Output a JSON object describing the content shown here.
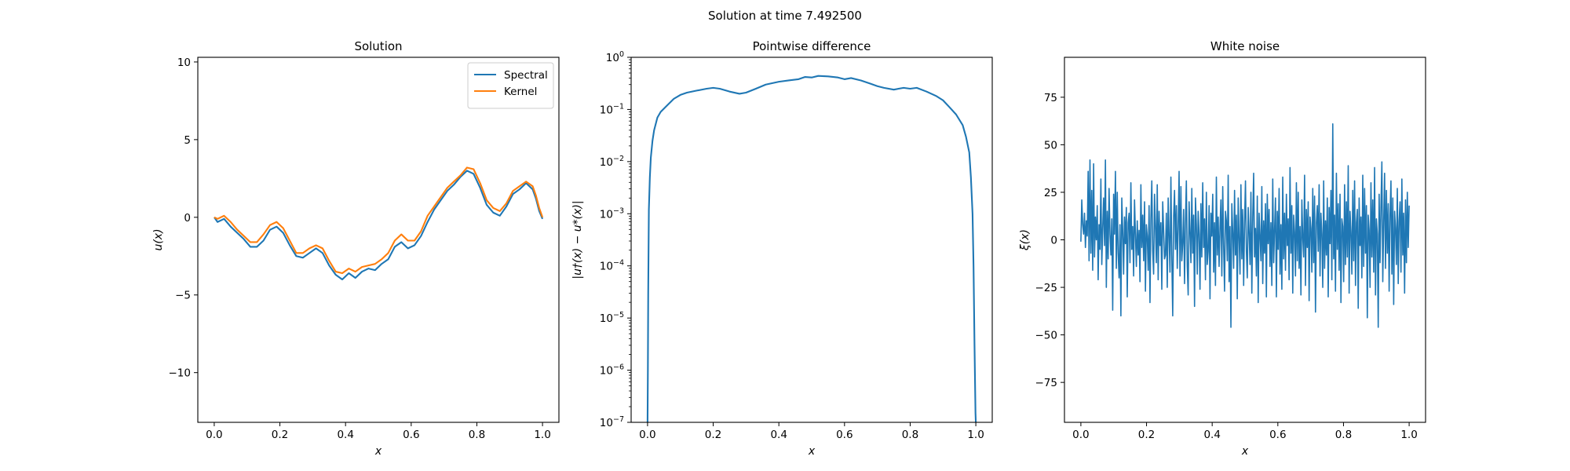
{
  "figure": {
    "title": "Solution at time 7.492500"
  },
  "colors": {
    "blue": "#1f77b4",
    "orange": "#ff7f0e",
    "axis": "#000000",
    "legend_edge": "#cccccc"
  },
  "chart_data": [
    {
      "type": "line",
      "title": "Solution",
      "xlabel": "x",
      "ylabel": "u(x)",
      "xlim": [
        -0.05,
        1.05
      ],
      "ylim": [
        -13.2,
        10.3
      ],
      "yscale": "linear",
      "legend": "top-right",
      "grid": false,
      "xticks": [
        {
          "v": 0,
          "label": "0.0"
        },
        {
          "v": 0.2,
          "label": "0.2"
        },
        {
          "v": 0.4,
          "label": "0.4"
        },
        {
          "v": 0.6,
          "label": "0.6"
        },
        {
          "v": 0.8,
          "label": "0.8"
        },
        {
          "v": 1,
          "label": "1.0"
        }
      ],
      "yticks": [
        {
          "v": 10,
          "label": "10"
        },
        {
          "v": 5,
          "label": "5"
        },
        {
          "v": 0,
          "label": "0"
        },
        {
          "v": -5,
          "label": "−5"
        },
        {
          "v": -10,
          "label": "−10"
        }
      ],
      "series": [
        {
          "name": "Spectral",
          "color": "#1f77b4",
          "x": [
            0,
            0.01,
            0.02,
            0.03,
            0.05,
            0.07,
            0.09,
            0.11,
            0.13,
            0.15,
            0.17,
            0.19,
            0.21,
            0.23,
            0.25,
            0.27,
            0.29,
            0.31,
            0.33,
            0.35,
            0.37,
            0.39,
            0.41,
            0.43,
            0.45,
            0.47,
            0.49,
            0.51,
            0.53,
            0.55,
            0.57,
            0.59,
            0.61,
            0.63,
            0.65,
            0.67,
            0.69,
            0.71,
            0.73,
            0.75,
            0.77,
            0.79,
            0.81,
            0.83,
            0.85,
            0.87,
            0.89,
            0.91,
            0.93,
            0.95,
            0.97,
            0.98,
            0.99,
            1.0
          ],
          "y": [
            0.0,
            -0.3,
            -0.2,
            -0.1,
            -0.6,
            -1.0,
            -1.4,
            -1.9,
            -1.9,
            -1.5,
            -0.8,
            -0.6,
            -1.0,
            -1.8,
            -2.5,
            -2.6,
            -2.3,
            -2.0,
            -2.3,
            -3.1,
            -3.7,
            -4.0,
            -3.6,
            -3.9,
            -3.5,
            -3.3,
            -3.4,
            -3.0,
            -2.7,
            -1.9,
            -1.6,
            -2.0,
            -1.8,
            -1.2,
            -0.3,
            0.5,
            1.1,
            1.7,
            2.1,
            2.6,
            3.0,
            2.8,
            1.9,
            0.8,
            0.3,
            0.1,
            0.7,
            1.5,
            1.8,
            2.2,
            1.8,
            1.2,
            0.4,
            -0.1
          ]
        },
        {
          "name": "Kernel",
          "color": "#ff7f0e",
          "x": [
            0,
            0.01,
            0.02,
            0.03,
            0.05,
            0.07,
            0.09,
            0.11,
            0.13,
            0.15,
            0.17,
            0.19,
            0.21,
            0.23,
            0.25,
            0.27,
            0.29,
            0.31,
            0.33,
            0.35,
            0.37,
            0.39,
            0.41,
            0.43,
            0.45,
            0.47,
            0.49,
            0.51,
            0.53,
            0.55,
            0.57,
            0.59,
            0.61,
            0.63,
            0.65,
            0.67,
            0.69,
            0.71,
            0.73,
            0.75,
            0.77,
            0.79,
            0.81,
            0.83,
            0.85,
            0.87,
            0.89,
            0.91,
            0.93,
            0.95,
            0.97,
            0.98,
            0.99,
            1.0
          ],
          "y": [
            0.0,
            -0.1,
            0.0,
            0.1,
            -0.3,
            -0.8,
            -1.2,
            -1.6,
            -1.6,
            -1.1,
            -0.5,
            -0.3,
            -0.7,
            -1.5,
            -2.3,
            -2.3,
            -2.0,
            -1.8,
            -2.0,
            -2.8,
            -3.5,
            -3.6,
            -3.3,
            -3.5,
            -3.2,
            -3.1,
            -3.0,
            -2.7,
            -2.3,
            -1.5,
            -1.1,
            -1.5,
            -1.5,
            -0.9,
            0.1,
            0.7,
            1.3,
            1.9,
            2.3,
            2.7,
            3.2,
            3.1,
            2.2,
            1.1,
            0.6,
            0.4,
            0.9,
            1.7,
            2.0,
            2.3,
            2.0,
            1.4,
            0.6,
            0.0
          ]
        }
      ]
    },
    {
      "type": "line",
      "title": "Pointwise difference",
      "xlabel": "x",
      "ylabel": "|u†(x) − u*(x)|",
      "xlim": [
        -0.05,
        1.05
      ],
      "ylim": [
        1e-07,
        1
      ],
      "yscale": "log",
      "grid": false,
      "xticks": [
        {
          "v": 0,
          "label": "0.0"
        },
        {
          "v": 0.2,
          "label": "0.2"
        },
        {
          "v": 0.4,
          "label": "0.4"
        },
        {
          "v": 0.6,
          "label": "0.6"
        },
        {
          "v": 0.8,
          "label": "0.8"
        },
        {
          "v": 1,
          "label": "1.0"
        }
      ],
      "yticks": [
        {
          "v": 1e-07,
          "base": "10",
          "exp": "−7"
        },
        {
          "v": 1e-06,
          "base": "10",
          "exp": "−6"
        },
        {
          "v": 1e-05,
          "base": "10",
          "exp": "−5"
        },
        {
          "v": 0.0001,
          "base": "10",
          "exp": "−4"
        },
        {
          "v": 0.001,
          "base": "10",
          "exp": "−3"
        },
        {
          "v": 0.01,
          "base": "10",
          "exp": "−2"
        },
        {
          "v": 0.1,
          "base": "10",
          "exp": "−1"
        },
        {
          "v": 1,
          "base": "10",
          "exp": "0"
        }
      ],
      "series": [
        {
          "color": "#1f77b4",
          "x": [
            0.0,
            0.001,
            0.002,
            0.004,
            0.007,
            0.01,
            0.015,
            0.02,
            0.03,
            0.04,
            0.06,
            0.08,
            0.1,
            0.12,
            0.15,
            0.18,
            0.2,
            0.22,
            0.25,
            0.28,
            0.3,
            0.33,
            0.36,
            0.4,
            0.43,
            0.46,
            0.48,
            0.5,
            0.52,
            0.55,
            0.58,
            0.6,
            0.62,
            0.65,
            0.68,
            0.7,
            0.72,
            0.75,
            0.78,
            0.8,
            0.82,
            0.85,
            0.88,
            0.9,
            0.92,
            0.94,
            0.96,
            0.97,
            0.98,
            0.985,
            0.99,
            0.993,
            0.996,
            0.998,
            0.999,
            1.0
          ],
          "y": [
            1e-07,
            1e-06,
            3e-05,
            0.0012,
            0.005,
            0.012,
            0.025,
            0.04,
            0.07,
            0.09,
            0.12,
            0.16,
            0.19,
            0.21,
            0.23,
            0.25,
            0.26,
            0.25,
            0.22,
            0.2,
            0.21,
            0.25,
            0.3,
            0.34,
            0.36,
            0.38,
            0.42,
            0.41,
            0.44,
            0.43,
            0.41,
            0.38,
            0.4,
            0.36,
            0.31,
            0.28,
            0.26,
            0.24,
            0.26,
            0.25,
            0.26,
            0.22,
            0.18,
            0.15,
            0.11,
            0.08,
            0.05,
            0.03,
            0.015,
            0.005,
            0.001,
            0.0001,
            3e-06,
            4e-07,
            1.5e-07,
            1e-07
          ]
        }
      ]
    },
    {
      "type": "line",
      "title": "White noise",
      "xlabel": "x",
      "ylabel": "ξ(x)",
      "xlim": [
        -0.05,
        1.05
      ],
      "ylim": [
        -96,
        96
      ],
      "yscale": "linear",
      "grid": false,
      "xticks": [
        {
          "v": 0,
          "label": "0.0"
        },
        {
          "v": 0.2,
          "label": "0.2"
        },
        {
          "v": 0.4,
          "label": "0.4"
        },
        {
          "v": 0.6,
          "label": "0.6"
        },
        {
          "v": 0.8,
          "label": "0.8"
        },
        {
          "v": 1,
          "label": "1.0"
        }
      ],
      "yticks": [
        {
          "v": 75,
          "label": "75"
        },
        {
          "v": 50,
          "label": "50"
        },
        {
          "v": 25,
          "label": "25"
        },
        {
          "v": 0,
          "label": "0"
        },
        {
          "v": -25,
          "label": "−25"
        },
        {
          "v": -50,
          "label": "−50"
        },
        {
          "v": -75,
          "label": "−75"
        }
      ],
      "series": [
        {
          "color": "#1f77b4",
          "x_start": 0,
          "x_end": 1,
          "y": [
            -1,
            21,
            8,
            3,
            14,
            -4,
            10,
            2,
            36,
            -11,
            42,
            -7,
            26,
            -16,
            40,
            -9,
            12,
            0,
            18,
            -21,
            8,
            -5,
            32,
            -13,
            6,
            22,
            -3,
            42,
            -25,
            15,
            -10,
            27,
            3,
            -8,
            11,
            -37,
            24,
            3,
            36,
            -15,
            25,
            -7,
            -20,
            8,
            -40,
            22,
            5,
            -18,
            12,
            -2,
            17,
            -30,
            9,
            14,
            -12,
            30,
            -5,
            7,
            -19,
            21,
            3,
            -14,
            10,
            -8,
            5,
            -22,
            29,
            -4,
            13,
            -11,
            20,
            -27,
            8,
            2,
            -16,
            18,
            -33,
            11,
            31,
            -6,
            -18,
            24,
            7,
            -12,
            29,
            -21,
            15,
            -3,
            9,
            -26,
            20,
            5,
            -10,
            -8,
            14,
            -25,
            22,
            2,
            -17,
            33,
            -9,
            -40,
            12,
            26,
            -5,
            18,
            -15,
            7,
            36,
            -19,
            28,
            -11,
            -2,
            16,
            -23,
            9,
            31,
            -14,
            -29,
            20,
            4,
            -12,
            27,
            -7,
            13,
            -35,
            22,
            8,
            -18,
            15,
            3,
            -26,
            19,
            -9,
            30,
            -4,
            11,
            -21,
            25,
            -13,
            -6,
            18,
            -31,
            14,
            2,
            24,
            -17,
            9,
            -24,
            33,
            -8,
            12,
            -14,
            6,
            21,
            -19,
            28,
            -3,
            -27,
            15,
            10,
            -11,
            34,
            -22,
            7,
            -46,
            19,
            4,
            -15,
            26,
            -8,
            13,
            -31,
            22,
            1,
            -18,
            29,
            -10,
            16,
            -24,
            9,
            31,
            -6,
            -20,
            17,
            4,
            -13,
            25,
            -28,
            12,
            35,
            -9,
            6,
            -19,
            23,
            -33,
            14,
            2,
            -11,
            28,
            -23,
            10,
            -7,
            19,
            -30,
            24,
            -2,
            16,
            -14,
            9,
            -24,
            32,
            -12,
            5,
            22,
            -30,
            15,
            -5,
            27,
            -18,
            8,
            -26,
            33,
            -10,
            14,
            -16,
            24,
            -3,
            11,
            -21,
            38,
            -7,
            18,
            -28,
            13,
            4,
            -19,
            30,
            -11,
            25,
            -15,
            7,
            -29,
            21,
            1,
            -9,
            34,
            -24,
            16,
            -4,
            20,
            -32,
            12,
            6,
            -17,
            27,
            -12,
            23,
            -38,
            9,
            18,
            -6,
            29,
            -19,
            14,
            3,
            -25,
            31,
            -15,
            10,
            -8,
            22,
            -30,
            17,
            -2,
            26,
            -21,
            61,
            -10,
            13,
            -27,
            35,
            -5,
            19,
            -16,
            24,
            -33,
            11,
            7,
            -22,
            29,
            -13,
            20,
            -9,
            39,
            -28,
            15,
            4,
            -18,
            26,
            -11,
            31,
            -24,
            9,
            16,
            -36,
            22,
            -3,
            12,
            -20,
            34,
            -14,
            27,
            -7,
            18,
            -41,
            13,
            5,
            -25,
            30,
            -9,
            21,
            -17,
            38,
            -29,
            11,
            3,
            -46,
            24,
            -12,
            17,
            41,
            -22,
            9,
            35,
            -15,
            26,
            -7,
            19,
            -27,
            13,
            31,
            -18,
            22,
            -34,
            15,
            6,
            -13,
            27,
            -23,
            10,
            20,
            -17,
            32,
            -8,
            14,
            -28,
            21,
            -12,
            25,
            -4,
            18
          ]
        }
      ]
    }
  ]
}
